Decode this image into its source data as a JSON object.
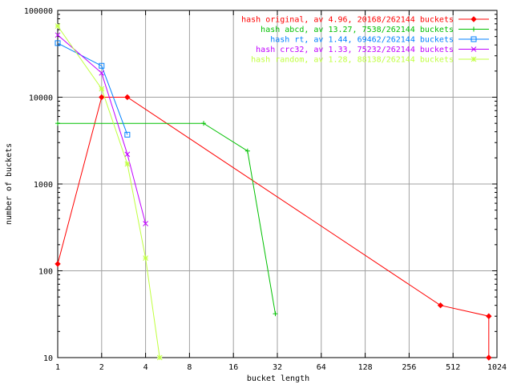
{
  "chart_data": {
    "type": "line",
    "title": "",
    "xlabel": "bucket length",
    "ylabel": "number of buckets",
    "x_scale": "log2",
    "y_scale": "log10",
    "xlim": [
      1,
      1024
    ],
    "ylim": [
      10,
      100000
    ],
    "grid": true,
    "legend_position": "top-right",
    "x_ticks": [
      1,
      2,
      4,
      8,
      16,
      32,
      64,
      128,
      256,
      512,
      1024
    ],
    "x_tick_labels": [
      "1",
      "2",
      "4",
      "8",
      "16",
      "32",
      "64",
      "128",
      "256",
      "512",
      "1024"
    ],
    "y_ticks": [
      10,
      100,
      1000,
      10000,
      100000
    ],
    "y_tick_labels": [
      "10",
      "100",
      "1000",
      "10000",
      "100000"
    ],
    "series": [
      {
        "name": "hash original, av 4.96, 20168/262144 buckets",
        "color": "#ff0000",
        "marker": "diamond",
        "points": [
          [
            1,
            120
          ],
          [
            2,
            10000
          ],
          [
            3,
            10000
          ],
          [
            420,
            40
          ],
          [
            900,
            30
          ],
          [
            900,
            10
          ]
        ]
      },
      {
        "name": "hash abcd, av 13.27, 7538/262144 buckets",
        "color": "#00c000",
        "marker": "plus",
        "points": [
          [
            1,
            5000
          ],
          [
            10,
            5000
          ],
          [
            20,
            2400
          ],
          [
            31,
            32
          ]
        ]
      },
      {
        "name": "hash rt, av 1.44, 69462/262144 buckets",
        "color": "#0080ff",
        "marker": "square",
        "points": [
          [
            1,
            42000
          ],
          [
            2,
            23000
          ],
          [
            3,
            3700
          ]
        ]
      },
      {
        "name": "hash crc32, av 1.33, 75232/262144 buckets",
        "color": "#c000ff",
        "marker": "cross",
        "points": [
          [
            1,
            52000
          ],
          [
            2,
            19000
          ],
          [
            3,
            2200
          ],
          [
            4,
            350
          ]
        ]
      },
      {
        "name": "hash random, av 1.28, 88138/262144 buckets",
        "color": "#c0ff40",
        "marker": "star",
        "points": [
          [
            1,
            66000
          ],
          [
            2,
            12500
          ],
          [
            3,
            1700
          ],
          [
            4,
            140
          ],
          [
            5,
            10
          ]
        ]
      }
    ]
  }
}
